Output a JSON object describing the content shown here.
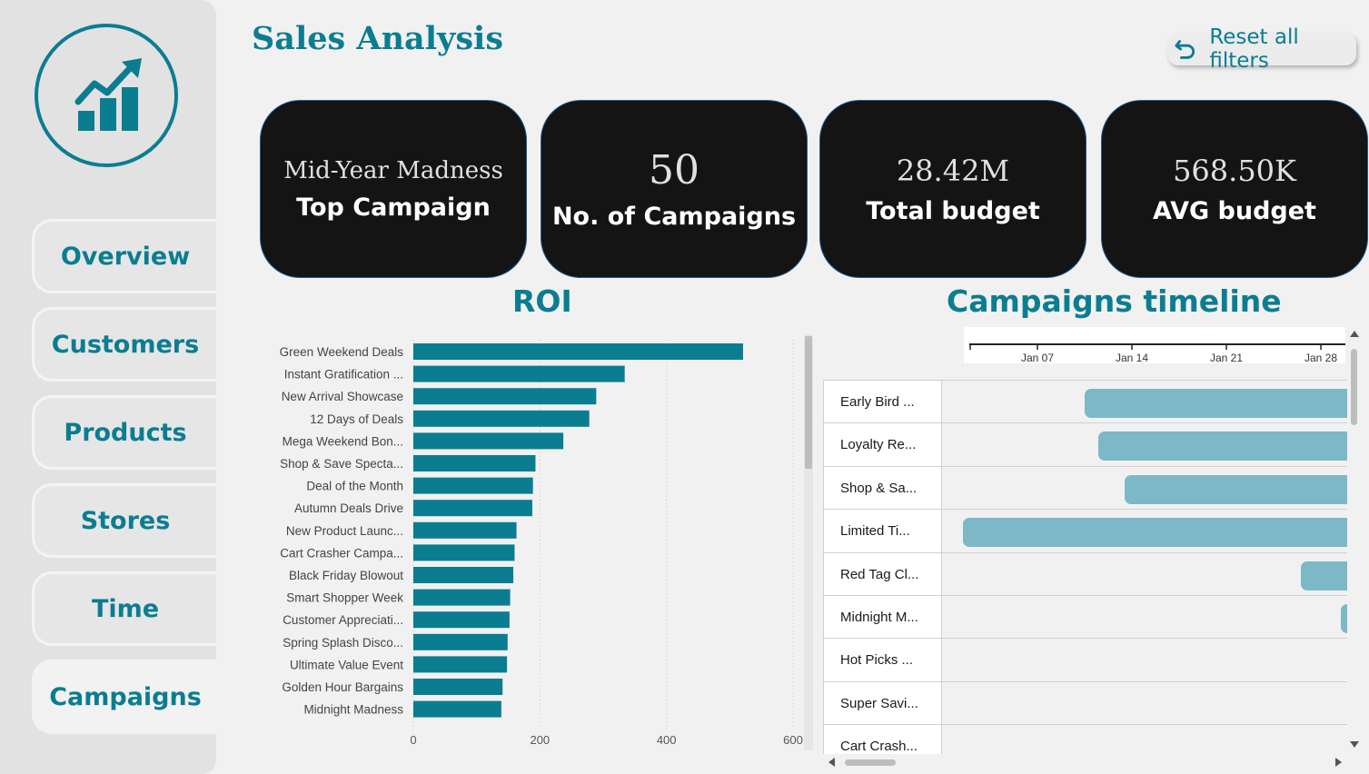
{
  "header": {
    "title": "Sales Analysis",
    "reset_label": "Reset all filters"
  },
  "sidebar": {
    "items": [
      {
        "label": "Overview"
      },
      {
        "label": "Customers"
      },
      {
        "label": "Products"
      },
      {
        "label": "Stores"
      },
      {
        "label": "Time"
      },
      {
        "label": "Campaigns",
        "active": true
      }
    ]
  },
  "kpis": [
    {
      "value": "Mid-Year Madness",
      "label": "Top Campaign"
    },
    {
      "value": "50",
      "label": "No. of Campaigns"
    },
    {
      "value": "28.42M",
      "label": "Total budget"
    },
    {
      "value": "568.50K",
      "label": "AVG budget"
    }
  ],
  "roi": {
    "title": "ROI",
    "chart_data": {
      "type": "bar",
      "orientation": "horizontal",
      "categories": [
        "Green Weekend Deals",
        "Instant Gratification ...",
        "New Arrival Showcase",
        "12 Days of Deals",
        "Mega Weekend Bon...",
        "Shop & Save Specta...",
        "Deal of the Month",
        "Autumn Deals Drive",
        "New Product Launc...",
        "Cart Crasher Campa...",
        "Black Friday Blowout",
        "Smart Shopper Week",
        "Customer Appreciati...",
        "Spring Splash Disco...",
        "Ultimate Value Event",
        "Golden Hour Bargains",
        "Midnight Madness"
      ],
      "values": [
        521,
        334,
        289,
        278,
        237,
        193,
        189,
        188,
        163,
        160,
        158,
        153,
        152,
        149,
        148,
        141,
        139
      ],
      "xlim": [
        0,
        600
      ],
      "xticks": [
        "0",
        "200",
        "400",
        "600"
      ],
      "grid": true,
      "color": "#0b7d91"
    }
  },
  "timeline": {
    "title": "Campaigns timeline",
    "ticks": [
      "Jan 07",
      "Jan 14",
      "Jan 21",
      "Jan 28"
    ],
    "bar_color": "#7cb8c8",
    "rows": [
      {
        "label": "Early Bird ...",
        "start": 0.35,
        "end": 1.0
      },
      {
        "label": "Loyalty Re...",
        "start": 0.385,
        "end": 1.0
      },
      {
        "label": "Shop & Sa...",
        "start": 0.45,
        "end": 1.0
      },
      {
        "label": "Limited Ti...",
        "start": 0.05,
        "end": 1.0
      },
      {
        "label": "Red Tag Cl...",
        "start": 0.885,
        "end": 1.0
      },
      {
        "label": "Midnight M...",
        "start": 0.985,
        "end": 1.0
      },
      {
        "label": "Hot Picks ...",
        "start": null,
        "end": null
      },
      {
        "label": "Super Savi...",
        "start": null,
        "end": null
      },
      {
        "label": "Cart Crash...",
        "start": null,
        "end": null
      }
    ]
  }
}
